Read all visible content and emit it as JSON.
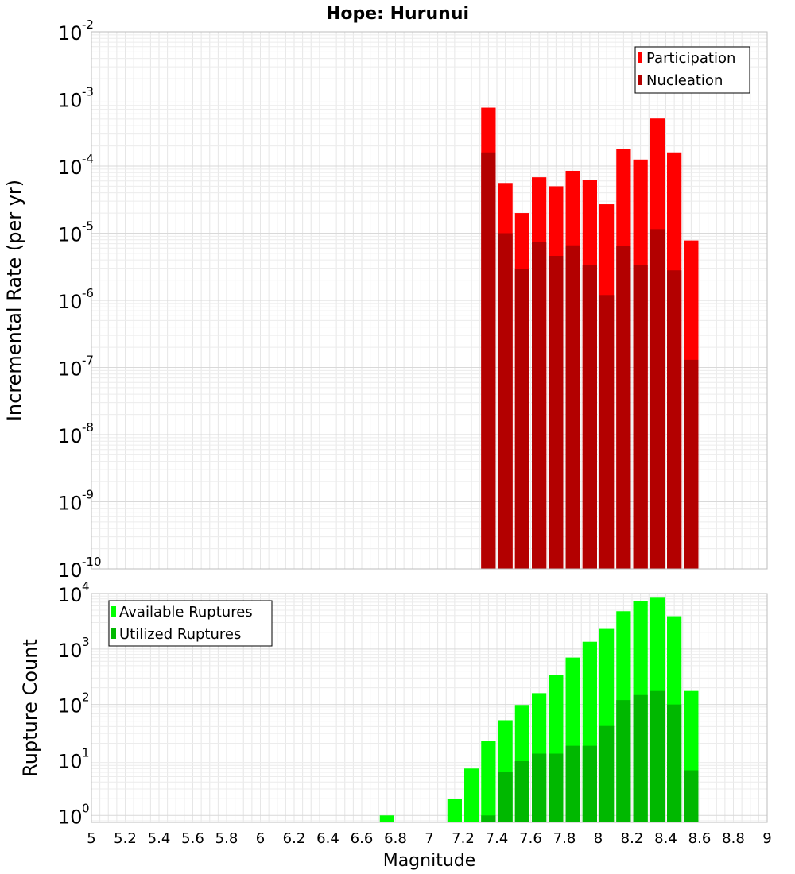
{
  "title": "Hope: Hurunui",
  "xlabel": "Magnitude",
  "x_ticks": [
    "5",
    "5.2",
    "5.4",
    "5.6",
    "5.8",
    "6",
    "6.2",
    "6.4",
    "6.6",
    "6.8",
    "7",
    "7.2",
    "7.4",
    "7.6",
    "7.8",
    "8",
    "8.2",
    "8.4",
    "8.6",
    "8.8",
    "9"
  ],
  "chart_data": [
    {
      "type": "bar",
      "ylabel": "Incremental Rate (per yr)",
      "yscale": "log",
      "xlim": [
        5,
        9
      ],
      "ylim": [
        1e-10,
        0.01
      ],
      "y_tick_exponents": [
        "-10",
        "-9",
        "-8",
        "-7",
        "-6",
        "-5",
        "-4",
        "-3",
        "-2"
      ],
      "grid": true,
      "legend_position": "top-right",
      "x": [
        7.35,
        7.45,
        7.55,
        7.65,
        7.75,
        7.85,
        7.95,
        8.05,
        8.15,
        8.25,
        8.35,
        8.45,
        8.55
      ],
      "series": [
        {
          "name": "Participation",
          "color": "#ff0000",
          "values": [
            0.00074,
            5.6e-05,
            2e-05,
            6.8e-05,
            5e-05,
            8.5e-05,
            6.2e-05,
            2.7e-05,
            0.00018,
            0.000125,
            0.00051,
            0.00016,
            7.8e-06
          ]
        },
        {
          "name": "Nucleation",
          "color": "#b30000",
          "values": [
            0.00016,
            1e-05,
            2.9e-06,
            7.4e-06,
            4.6e-06,
            6.6e-06,
            3.4e-06,
            1.2e-06,
            6.4e-06,
            3.4e-06,
            1.15e-05,
            2.8e-06,
            1.3e-07
          ]
        }
      ]
    },
    {
      "type": "bar",
      "ylabel": "Rupture Count",
      "yscale": "log",
      "xlim": [
        5,
        9
      ],
      "ylim": [
        0.75,
        10000.0
      ],
      "y_tick_exponents": [
        "0",
        "1",
        "2",
        "3",
        "4"
      ],
      "grid": true,
      "legend_position": "top-left",
      "x": [
        6.75,
        7.15,
        7.25,
        7.35,
        7.45,
        7.55,
        7.65,
        7.75,
        7.85,
        7.95,
        8.05,
        8.15,
        8.25,
        8.35,
        8.45,
        8.55
      ],
      "series": [
        {
          "name": "Available Ruptures",
          "color": "#00ff00",
          "values": [
            1,
            2,
            7,
            22,
            52,
            98,
            160,
            340,
            700,
            1350,
            2300,
            4800,
            7200,
            8400,
            3900,
            175
          ]
        },
        {
          "name": "Utilized Ruptures",
          "color": "#00b800",
          "values": [
            0,
            0,
            0,
            1,
            6,
            9.5,
            13,
            13,
            18,
            18,
            41,
            120,
            148,
            175,
            100,
            6.5
          ]
        }
      ]
    }
  ]
}
